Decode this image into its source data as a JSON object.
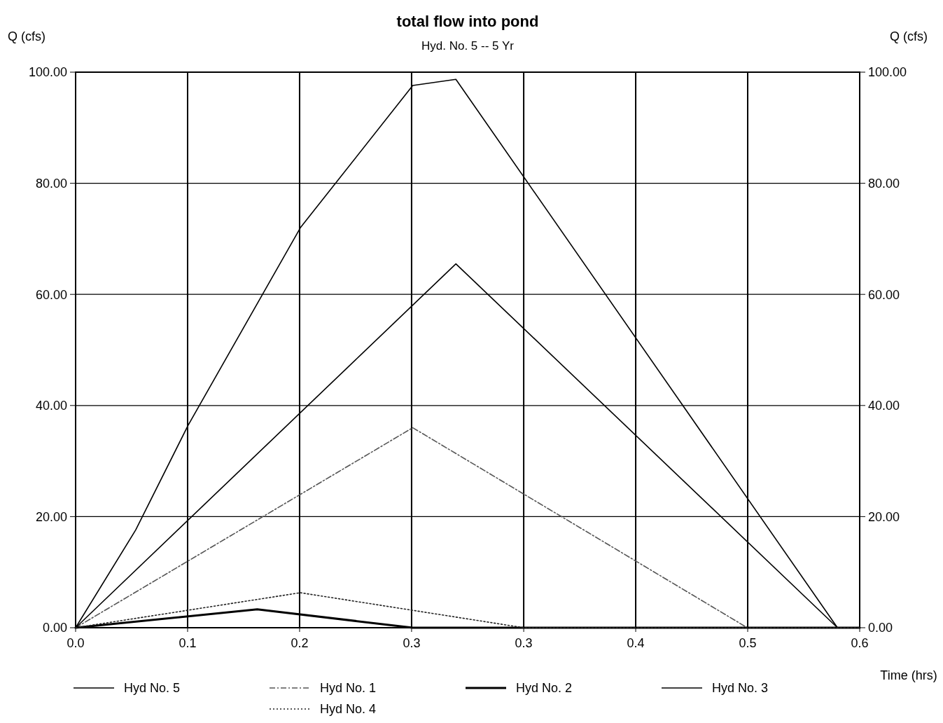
{
  "chart_data": {
    "type": "line",
    "title": "total flow into pond",
    "subtitle": "Hyd. No. 5 -- 5 Yr",
    "xlabel": "Time (hrs)",
    "ylabel": "Q (cfs)",
    "y2label": "Q (cfs)",
    "xlim": [
      0,
      0.6
    ],
    "xticks": [
      {
        "value": 0,
        "label": "0.0"
      },
      {
        "value": 0.0857,
        "label": "0.1"
      },
      {
        "value": 0.1714,
        "label": "0.2"
      },
      {
        "value": 0.2571,
        "label": "0.3"
      },
      {
        "value": 0.3429,
        "label": "0.3"
      },
      {
        "value": 0.4286,
        "label": "0.4"
      },
      {
        "value": 0.5143,
        "label": "0.5"
      },
      {
        "value": 0.6,
        "label": "0.6"
      }
    ],
    "ylim": [
      0,
      100
    ],
    "yticks": [
      {
        "value": 0,
        "label": "0.00"
      },
      {
        "value": 20,
        "label": "20.00"
      },
      {
        "value": 40,
        "label": "40.00"
      },
      {
        "value": 60,
        "label": "60.00"
      },
      {
        "value": 80,
        "label": "80.00"
      },
      {
        "value": 100,
        "label": "100.00"
      }
    ],
    "y2lim": [
      0,
      100
    ],
    "y2ticks": [
      {
        "value": 0,
        "label": "0.00"
      },
      {
        "value": 20,
        "label": "20.00"
      },
      {
        "value": 40,
        "label": "40.00"
      },
      {
        "value": 60,
        "label": "60.00"
      },
      {
        "value": 80,
        "label": "80.00"
      },
      {
        "value": 100,
        "label": "100.00"
      }
    ],
    "grid": true,
    "legend": "bottom",
    "series": [
      {
        "name": "Hyd No. 5",
        "color": "#000000",
        "line_style": "solid",
        "x": [
          0,
          0.046,
          0.086,
          0.172,
          0.258,
          0.291,
          0.583,
          0.6
        ],
        "values": [
          0,
          17.6,
          36.4,
          72,
          97.6,
          98.7,
          0,
          0
        ]
      },
      {
        "name": "Hyd No. 1",
        "color": "#555555",
        "line_style": "dashed",
        "x": [
          0,
          0.258,
          0.514,
          0.6
        ],
        "values": [
          0,
          36,
          0,
          0
        ]
      },
      {
        "name": "Hyd No. 2",
        "color": "#000000",
        "line_style": "solid",
        "x": [
          0,
          0.139,
          0.258,
          0.6
        ],
        "values": [
          0,
          3.3,
          0,
          0
        ]
      },
      {
        "name": "Hyd No. 3",
        "color": "#000000",
        "line_style": "solid",
        "x": [
          0,
          0.291,
          0.583,
          0.6
        ],
        "values": [
          0,
          65.5,
          0,
          0
        ]
      },
      {
        "name": "Hyd No. 4",
        "color": "#222222",
        "line_style": "dotted",
        "x": [
          0,
          0.172,
          0.343,
          0.6
        ],
        "values": [
          0,
          6.3,
          0,
          0
        ]
      }
    ]
  }
}
